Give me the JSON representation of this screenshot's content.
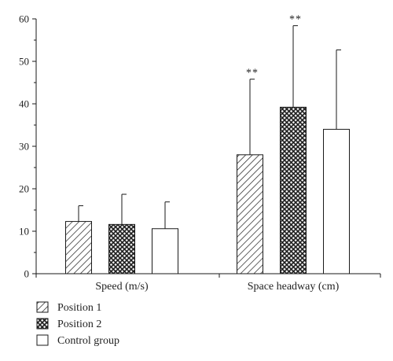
{
  "chart_data": {
    "type": "bar",
    "categories": [
      "Speed (m/s)",
      "Space headway (cm)"
    ],
    "series": [
      {
        "name": "Position 1",
        "pattern": "diagonal-hatch",
        "values": [
          12.3,
          28.0
        ],
        "errors": [
          3.7,
          17.8
        ],
        "annotations": [
          "",
          "**"
        ]
      },
      {
        "name": "Position 2",
        "pattern": "crosshatch",
        "values": [
          11.6,
          39.2
        ],
        "errors": [
          7.1,
          19.2
        ],
        "annotations": [
          "",
          "**"
        ]
      },
      {
        "name": "Control group",
        "pattern": "none",
        "values": [
          10.6,
          34.0
        ],
        "errors": [
          6.3,
          18.7
        ],
        "annotations": [
          "",
          ""
        ]
      }
    ],
    "ylim": [
      0,
      60
    ],
    "yticks": [
      0,
      10,
      20,
      30,
      40,
      50,
      60
    ],
    "xlabel": "",
    "ylabel": "",
    "grid": false,
    "legend_position": "bottom-left",
    "colors": {
      "stroke": "#1a1a1a",
      "fill": "#ffffff"
    }
  }
}
